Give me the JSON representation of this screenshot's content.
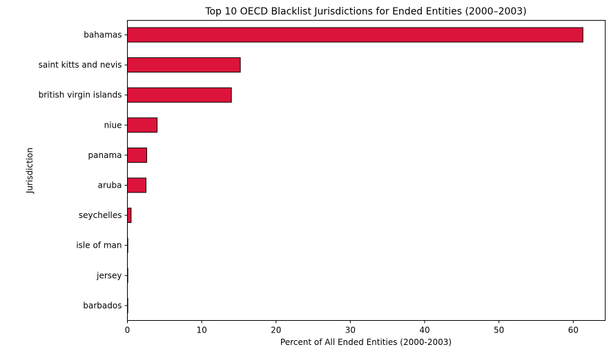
{
  "chart_data": {
    "type": "bar",
    "orientation": "horizontal",
    "title": "Top 10 OECD Blacklist Jurisdictions for Ended Entities (2000–2003)",
    "xlabel": "Percent of All Ended Entities (2000-2003)",
    "ylabel": "Jurisdiction",
    "xlim": [
      0,
      64.3
    ],
    "x_ticks": [
      0,
      10,
      20,
      30,
      40,
      50,
      60
    ],
    "grid": false,
    "categories": [
      "bahamas",
      "saint kitts and nevis",
      "british virgin islands",
      "niue",
      "panama",
      "aruba",
      "seychelles",
      "isle of man",
      "jersey",
      "barbados"
    ],
    "values": [
      61.3,
      15.2,
      14.0,
      4.0,
      2.6,
      2.5,
      0.5,
      0.05,
      0.05,
      0.05
    ],
    "bar_color": "#dc143c",
    "bar_edge_color": "#000000"
  }
}
